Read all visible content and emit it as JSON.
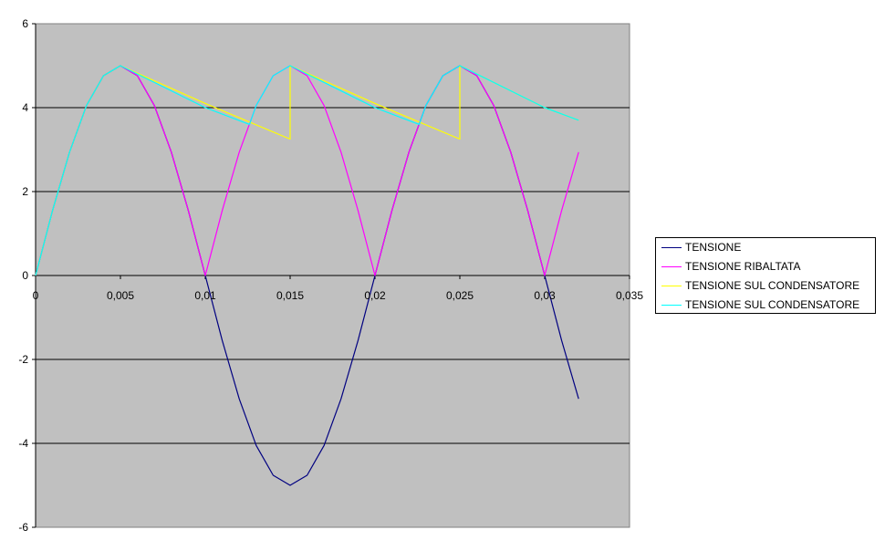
{
  "chart_data": {
    "type": "line",
    "title": "",
    "xlabel": "",
    "ylabel": "",
    "xlim": [
      0,
      0.035
    ],
    "ylim": [
      -6,
      6
    ],
    "x_ticks": [
      "0",
      "0,005",
      "0,01",
      "0,015",
      "0,02",
      "0,025",
      "0,03",
      "0,035"
    ],
    "y_ticks": [
      "6",
      "4",
      "2",
      "0",
      "-2",
      "-4",
      "-6"
    ],
    "grid": "horizontal",
    "background": "#c0c0c0",
    "legend_placement": "right",
    "series": [
      {
        "name": "TENSIONE",
        "color": "#000080",
        "x": [
          0,
          0.001,
          0.002,
          0.003,
          0.004,
          0.005,
          0.006,
          0.007,
          0.008,
          0.009,
          0.01,
          0.011,
          0.012,
          0.013,
          0.014,
          0.015,
          0.016,
          0.017,
          0.018,
          0.019,
          0.02,
          0.021,
          0.022,
          0.023,
          0.024,
          0.025,
          0.026,
          0.027,
          0.028,
          0.029,
          0.03,
          0.031,
          0.032
        ],
        "y": [
          0,
          1.55,
          2.94,
          4.05,
          4.76,
          5,
          4.76,
          4.05,
          2.94,
          1.55,
          0,
          -1.55,
          -2.94,
          -4.05,
          -4.76,
          -5,
          -4.76,
          -4.05,
          -2.94,
          -1.55,
          0,
          1.55,
          2.94,
          4.05,
          4.76,
          5,
          4.76,
          4.05,
          2.94,
          1.55,
          0,
          -1.55,
          -2.94
        ]
      },
      {
        "name": "TENSIONE RIBALTATA",
        "color": "#ff00ff",
        "x": [
          0,
          0.001,
          0.002,
          0.003,
          0.004,
          0.005,
          0.006,
          0.007,
          0.008,
          0.009,
          0.01,
          0.011,
          0.012,
          0.013,
          0.014,
          0.015,
          0.016,
          0.017,
          0.018,
          0.019,
          0.02,
          0.021,
          0.022,
          0.023,
          0.024,
          0.025,
          0.026,
          0.027,
          0.028,
          0.029,
          0.03,
          0.031,
          0.032
        ],
        "y": [
          0,
          1.55,
          2.94,
          4.05,
          4.76,
          5,
          4.76,
          4.05,
          2.94,
          1.55,
          0,
          1.55,
          2.94,
          4.05,
          4.76,
          5,
          4.76,
          4.05,
          2.94,
          1.55,
          0,
          1.55,
          2.94,
          4.05,
          4.76,
          5,
          4.76,
          4.05,
          2.94,
          1.55,
          0,
          1.55,
          2.94
        ]
      },
      {
        "name": "TENSIONE SUL CONDENSATORE",
        "color": "#ffff00",
        "x": [
          0,
          0.001,
          0.002,
          0.003,
          0.004,
          0.005,
          0.01,
          0.015,
          0.015,
          0.02,
          0.025,
          0.025,
          0.03,
          0.032
        ],
        "y": [
          0,
          1.55,
          2.94,
          4.05,
          4.76,
          5,
          4.1,
          3.25,
          5,
          4.1,
          3.25,
          5,
          4.0,
          3.7
        ]
      },
      {
        "name": "TENSIONE SUL CONDENSATORE",
        "color": "#00ffff",
        "x": [
          0,
          0.001,
          0.002,
          0.003,
          0.004,
          0.005,
          0.01,
          0.0126,
          0.013,
          0.014,
          0.015,
          0.02,
          0.0226,
          0.023,
          0.024,
          0.025,
          0.03,
          0.032
        ],
        "y": [
          0,
          1.55,
          2.94,
          4.05,
          4.76,
          5,
          4.0,
          3.6,
          4.05,
          4.76,
          5,
          4.0,
          3.6,
          4.05,
          4.76,
          5,
          4.0,
          3.7
        ]
      }
    ]
  }
}
